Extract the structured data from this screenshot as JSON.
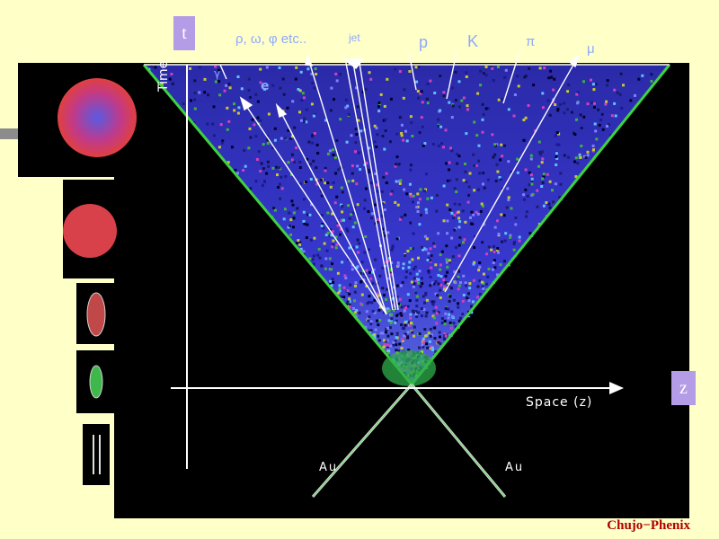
{
  "axes": {
    "t_label": "t",
    "z_label": "z",
    "space_label": "Space (z)",
    "time_label": "Time"
  },
  "nuclei": {
    "left": "Au",
    "right": "Au"
  },
  "particles": {
    "resonances": "ρ, ω, φ etc..",
    "jet": "jet",
    "proton": "p",
    "kaon": "K",
    "pion": "π",
    "muon": "μ",
    "electron": "e",
    "gamma": "γ"
  },
  "credit": "Chujo−Phenix",
  "colors": {
    "background": "#ffffc8",
    "cone_core": "#3a3ad0",
    "cone_edge": "#3ed23e",
    "axis_box": "#b49ce6",
    "label_blue": "#8fa8ff",
    "credit_red": "#b00000"
  }
}
